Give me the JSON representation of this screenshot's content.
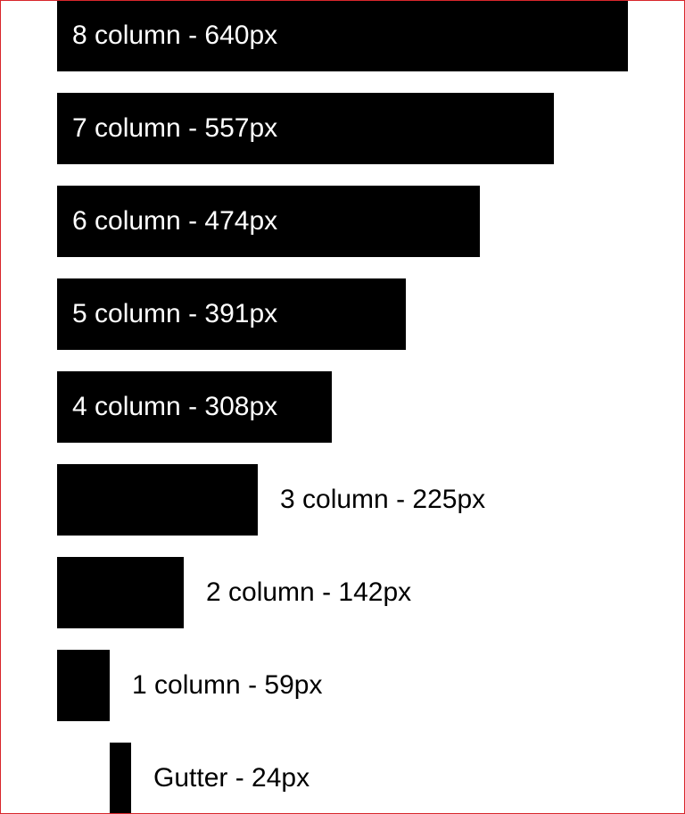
{
  "items": [
    {
      "label": "8 column - 640px"
    },
    {
      "label": "7 column - 557px"
    },
    {
      "label": "6 column - 474px"
    },
    {
      "label": "5 column - 391px"
    },
    {
      "label": "4 column - 308px"
    },
    {
      "label": "3 column - 225px"
    },
    {
      "label": "2 column - 142px"
    },
    {
      "label": "1 column - 59px"
    },
    {
      "label": "Gutter - 24px"
    }
  ]
}
